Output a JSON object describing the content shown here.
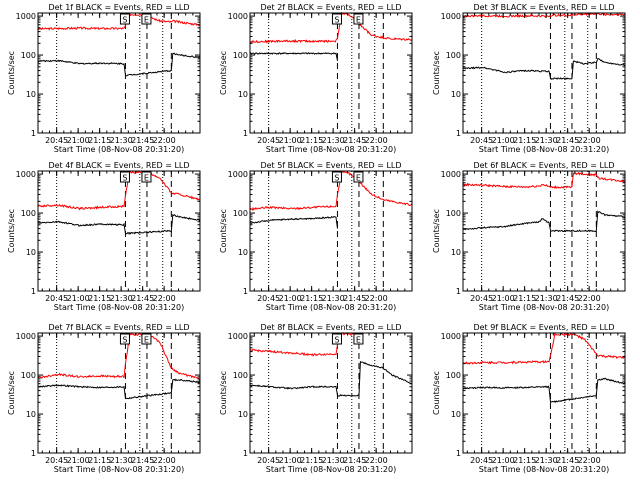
{
  "chart_data": [
    {
      "type": "line",
      "title": "Det 1f BLACK = Events, RED = LLD",
      "xlabel": "Start Time (08-Nov-08 20:31:20)",
      "ylabel": "Counts/sec",
      "yscale": "log",
      "ylim": [
        1,
        1200
      ],
      "xlim_min": [
        31,
        144
      ],
      "x_tick_labels": [
        "20:45",
        "21:00",
        "21:15",
        "21:30",
        "21:45",
        "22:00"
      ],
      "y_tick_labels": [
        "1",
        "10",
        "100",
        "1000"
      ],
      "markers": [
        {
          "label": "S",
          "x_min": 92
        },
        {
          "label": "E",
          "x_min": 107
        }
      ],
      "dotted_lines_min": [
        44,
        102,
        118
      ],
      "dashed_lines_min": [
        92,
        107,
        124
      ],
      "series": [
        {
          "color": "#ff0000",
          "x": [
            31,
            45,
            60,
            75,
            91,
            92,
            95,
            100,
            106,
            107,
            110,
            116,
            124,
            125,
            130,
            140,
            144
          ],
          "y": [
            470,
            480,
            490,
            480,
            480,
            560,
            1100,
            1100,
            1100,
            1000,
            900,
            750,
            700,
            750,
            700,
            620,
            600
          ]
        },
        {
          "color": "#000000",
          "x": [
            31,
            45,
            60,
            75,
            91,
            92,
            124,
            125,
            130,
            140,
            144
          ],
          "y": [
            70,
            72,
            60,
            62,
            60,
            30,
            40,
            110,
            100,
            90,
            88
          ]
        }
      ]
    },
    {
      "type": "line",
      "title": "Det 2f BLACK = Events, RED = LLD",
      "xlabel": "Start Time (08-Nov-08 20:31:20)",
      "ylabel": "Counts/sec",
      "yscale": "log",
      "ylim": [
        1,
        1200
      ],
      "xlim_min": [
        31,
        144
      ],
      "x_tick_labels": [
        "20:45",
        "21:00",
        "21:15",
        "21:30",
        "21:45",
        "22:00"
      ],
      "y_tick_labels": [
        "1",
        "10",
        "100",
        "1000"
      ],
      "markers": [
        {
          "label": "S",
          "x_min": 92
        },
        {
          "label": "E",
          "x_min": 107
        }
      ],
      "dotted_lines_min": [
        44,
        102,
        118
      ],
      "dashed_lines_min": [
        92,
        107,
        124
      ],
      "series": [
        {
          "color": "#ff0000",
          "x": [
            31,
            45,
            60,
            75,
            91,
            92,
            95,
            100,
            106,
            110,
            116,
            124,
            130,
            144
          ],
          "y": [
            220,
            225,
            230,
            225,
            230,
            280,
            1150,
            1100,
            700,
            500,
            320,
            280,
            260,
            250
          ]
        },
        {
          "color": "#000000",
          "x": [
            31,
            45,
            60,
            75,
            91,
            92
          ],
          "y": [
            110,
            110,
            110,
            110,
            110,
            70
          ]
        }
      ]
    },
    {
      "type": "line",
      "title": "Det 3f BLACK = Events, RED = LLD",
      "xlabel": "Start Time (08-Nov-08 20:31:20)",
      "ylabel": "Counts/sec",
      "yscale": "log",
      "ylim": [
        1,
        1200
      ],
      "xlim_min": [
        31,
        144
      ],
      "x_tick_labels": [
        "20:45",
        "21:00",
        "21:15",
        "21:30",
        "21:45",
        "22:00"
      ],
      "y_tick_labels": [
        "1",
        "10",
        "100",
        "1000"
      ],
      "markers": [],
      "dotted_lines_min": [
        44,
        102,
        118
      ],
      "dashed_lines_min": [
        92,
        107,
        124
      ],
      "series": [
        {
          "color": "#ff0000",
          "x": [
            31,
            45,
            60,
            75,
            91,
            93,
            107,
            110,
            124,
            130,
            144
          ],
          "y": [
            1000,
            1020,
            1000,
            1010,
            1000,
            1050,
            1050,
            1100,
            1150,
            1100,
            1100
          ]
        },
        {
          "color": "#000000",
          "x": [
            31,
            45,
            55,
            60,
            75,
            91,
            92,
            107,
            108,
            115,
            124,
            125,
            130,
            144
          ],
          "y": [
            45,
            48,
            40,
            36,
            40,
            38,
            25,
            25,
            70,
            60,
            65,
            80,
            65,
            55
          ]
        }
      ]
    },
    {
      "type": "line",
      "title": "Det 4f BLACK = Events, RED = LLD",
      "xlabel": "Start Time (08-Nov-08 20:31:20)",
      "ylabel": "Counts/sec",
      "yscale": "log",
      "ylim": [
        1,
        1200
      ],
      "xlim_min": [
        31,
        144
      ],
      "x_tick_labels": [
        "20:45",
        "21:00",
        "21:15",
        "21:30",
        "21:45",
        "22:00"
      ],
      "y_tick_labels": [
        "1",
        "10",
        "100",
        "1000"
      ],
      "markers": [
        {
          "label": "S",
          "x_min": 92
        },
        {
          "label": "E",
          "x_min": 107
        }
      ],
      "dotted_lines_min": [
        44,
        102,
        118
      ],
      "dashed_lines_min": [
        92,
        107,
        124
      ],
      "series": [
        {
          "color": "#ff0000",
          "x": [
            31,
            45,
            60,
            75,
            91,
            92,
            95,
            106,
            110,
            116,
            124,
            130,
            144
          ],
          "y": [
            150,
            160,
            130,
            140,
            150,
            280,
            1100,
            1100,
            1000,
            800,
            330,
            300,
            220
          ]
        },
        {
          "color": "#000000",
          "x": [
            31,
            45,
            60,
            75,
            91,
            92,
            124,
            125,
            130,
            144
          ],
          "y": [
            55,
            60,
            48,
            52,
            50,
            30,
            35,
            90,
            80,
            65
          ]
        }
      ]
    },
    {
      "type": "line",
      "title": "Det 5f BLACK = Events, RED = LLD",
      "xlabel": "Start Time (08-Nov-08 20:31:20)",
      "ylabel": "Counts/sec",
      "yscale": "log",
      "ylim": [
        1,
        1200
      ],
      "xlim_min": [
        31,
        144
      ],
      "x_tick_labels": [
        "20:45",
        "21:00",
        "21:15",
        "21:30",
        "21:45",
        "22:00"
      ],
      "y_tick_labels": [
        "1",
        "10",
        "100",
        "1000"
      ],
      "markers": [
        {
          "label": "S",
          "x_min": 92
        },
        {
          "label": "E",
          "x_min": 107
        }
      ],
      "dotted_lines_min": [
        44,
        102,
        118
      ],
      "dashed_lines_min": [
        92,
        107,
        124
      ],
      "series": [
        {
          "color": "#ff0000",
          "x": [
            31,
            45,
            60,
            75,
            91,
            92,
            95,
            100,
            106,
            110,
            116,
            124,
            130,
            144
          ],
          "y": [
            125,
            140,
            130,
            140,
            150,
            300,
            1100,
            1050,
            700,
            500,
            300,
            220,
            200,
            160
          ]
        },
        {
          "color": "#000000",
          "x": [
            31,
            45,
            60,
            75,
            91,
            92
          ],
          "y": [
            55,
            65,
            70,
            72,
            80,
            40
          ]
        }
      ]
    },
    {
      "type": "line",
      "title": "Det 6f BLACK = Events, RED = LLD",
      "xlabel": "Start Time (08-Nov-08 20:31:20)",
      "ylabel": "Counts/sec",
      "yscale": "log",
      "ylim": [
        1,
        1200
      ],
      "xlim_min": [
        31,
        144
      ],
      "x_tick_labels": [
        "20:45",
        "21:00",
        "21:15",
        "21:30",
        "21:45",
        "22:00"
      ],
      "y_tick_labels": [
        "1",
        "10",
        "100",
        "1000"
      ],
      "markers": [],
      "dotted_lines_min": [
        44,
        102,
        118
      ],
      "dashed_lines_min": [
        92,
        107,
        124
      ],
      "series": [
        {
          "color": "#ff0000",
          "x": [
            31,
            45,
            60,
            75,
            85,
            86,
            91,
            92,
            107,
            108,
            124,
            125,
            130,
            144
          ],
          "y": [
            540,
            520,
            480,
            470,
            500,
            550,
            480,
            460,
            460,
            1050,
            950,
            800,
            750,
            650
          ]
        },
        {
          "color": "#000000",
          "x": [
            31,
            45,
            60,
            75,
            85,
            86,
            91,
            92,
            124,
            125,
            130,
            144
          ],
          "y": [
            38,
            42,
            45,
            55,
            60,
            75,
            55,
            35,
            35,
            110,
            90,
            80
          ]
        }
      ]
    },
    {
      "type": "line",
      "title": "Det 7f BLACK = Events, RED = LLD",
      "xlabel": "Start Time (08-Nov-08 20:31:20)",
      "ylabel": "Counts/sec",
      "yscale": "log",
      "ylim": [
        1,
        1200
      ],
      "xlim_min": [
        31,
        144
      ],
      "x_tick_labels": [
        "20:45",
        "21:00",
        "21:15",
        "21:30",
        "21:45",
        "22:00"
      ],
      "y_tick_labels": [
        "1",
        "10",
        "100",
        "1000"
      ],
      "markers": [
        {
          "label": "S",
          "x_min": 92
        },
        {
          "label": "E",
          "x_min": 107
        }
      ],
      "dotted_lines_min": [
        44,
        102,
        118
      ],
      "dashed_lines_min": [
        92,
        107,
        124
      ],
      "series": [
        {
          "color": "#ff0000",
          "x": [
            31,
            45,
            60,
            75,
            91,
            92,
            95,
            106,
            110,
            116,
            124,
            130,
            144
          ],
          "y": [
            85,
            105,
            90,
            95,
            90,
            200,
            1100,
            1100,
            1000,
            700,
            150,
            110,
            80
          ]
        },
        {
          "color": "#000000",
          "x": [
            31,
            45,
            60,
            75,
            91,
            92,
            124,
            125,
            130,
            144
          ],
          "y": [
            50,
            55,
            50,
            48,
            50,
            25,
            35,
            75,
            75,
            65
          ]
        }
      ]
    },
    {
      "type": "line",
      "title": "Det 8f BLACK = Events, RED = LLD",
      "xlabel": "Start Time (08-Nov-08 20:31:20)",
      "ylabel": "Counts/sec",
      "yscale": "log",
      "ylim": [
        1,
        1200
      ],
      "xlim_min": [
        31,
        144
      ],
      "x_tick_labels": [
        "20:45",
        "21:00",
        "21:15",
        "21:30",
        "21:45",
        "22:00"
      ],
      "y_tick_labels": [
        "1",
        "10",
        "100",
        "1000"
      ],
      "markers": [
        {
          "label": "S",
          "x_min": 92
        },
        {
          "label": "E",
          "x_min": 107
        }
      ],
      "dotted_lines_min": [
        44,
        102,
        118
      ],
      "dashed_lines_min": [
        92,
        107,
        124
      ],
      "series": [
        {
          "color": "#ff0000",
          "x": [
            31,
            45,
            60,
            75,
            91,
            92,
            95,
            106
          ],
          "y": [
            440,
            400,
            370,
            330,
            350,
            600,
            1150,
            1100
          ]
        },
        {
          "color": "#000000",
          "x": [
            31,
            45,
            60,
            75,
            91,
            92,
            107,
            108,
            115,
            124,
            125,
            130,
            144
          ],
          "y": [
            55,
            50,
            45,
            50,
            50,
            30,
            30,
            220,
            180,
            150,
            140,
            100,
            60
          ]
        }
      ]
    },
    {
      "type": "line",
      "title": "Det 9f BLACK = Events, RED = LLD",
      "xlabel": "Start Time (08-Nov-08 20:31:20)",
      "ylabel": "Counts/sec",
      "yscale": "log",
      "ylim": [
        1,
        1200
      ],
      "xlim_min": [
        31,
        144
      ],
      "x_tick_labels": [
        "20:45",
        "21:00",
        "21:15",
        "21:30",
        "21:45",
        "22:00"
      ],
      "y_tick_labels": [
        "1",
        "10",
        "100",
        "1000"
      ],
      "markers": [],
      "dotted_lines_min": [
        44,
        102,
        118
      ],
      "dashed_lines_min": [
        92,
        107,
        124
      ],
      "series": [
        {
          "color": "#ff0000",
          "x": [
            31,
            45,
            60,
            75,
            91,
            92,
            95,
            106,
            107,
            110,
            116,
            124,
            125,
            130,
            144
          ],
          "y": [
            200,
            210,
            210,
            215,
            220,
            300,
            1100,
            1100,
            1100,
            1050,
            800,
            350,
            320,
            300,
            280
          ]
        },
        {
          "color": "#000000",
          "x": [
            31,
            45,
            60,
            75,
            91,
            92,
            124,
            125,
            130,
            144
          ],
          "y": [
            45,
            48,
            47,
            48,
            50,
            20,
            30,
            75,
            80,
            60
          ]
        }
      ]
    }
  ]
}
